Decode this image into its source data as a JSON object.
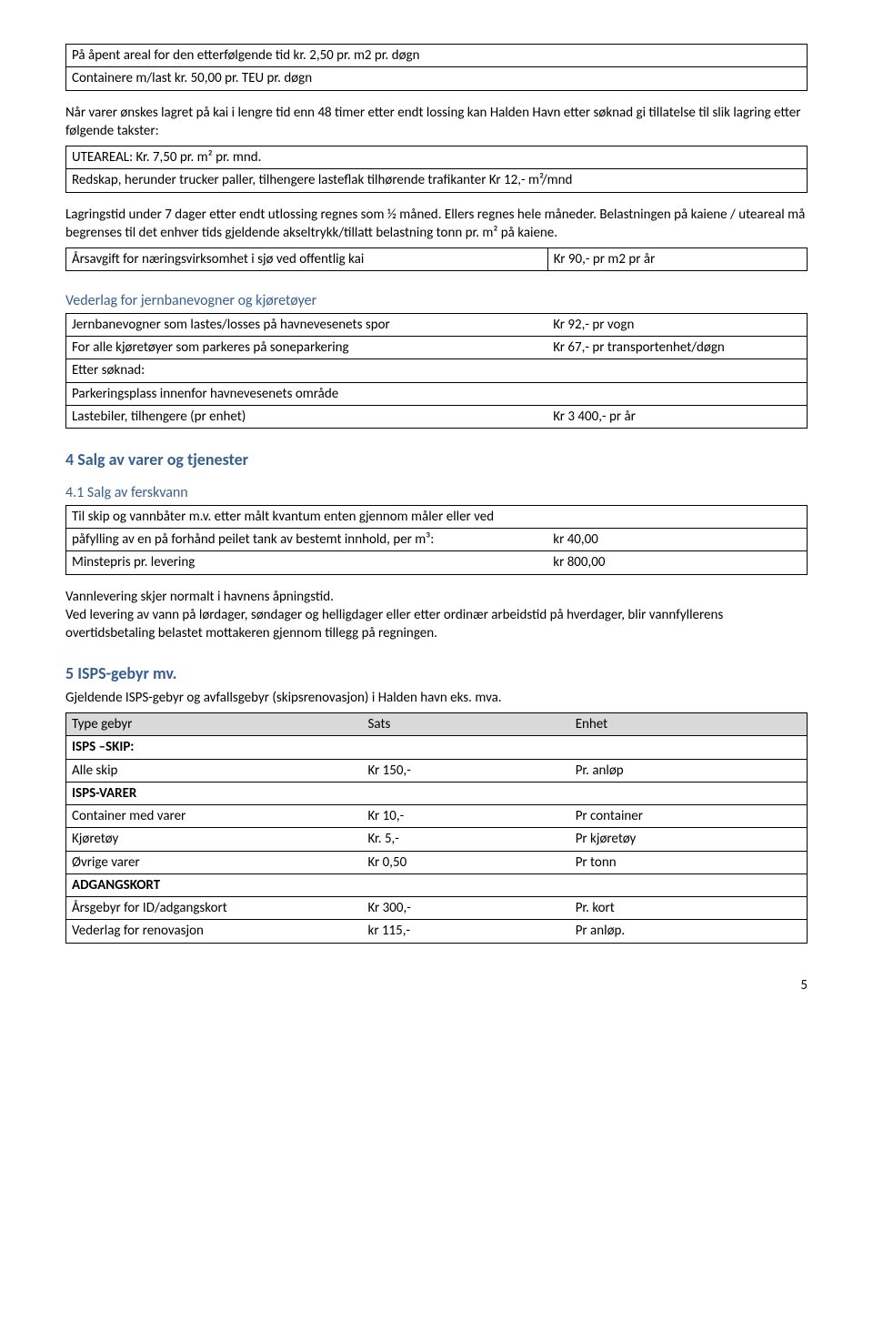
{
  "table1": {
    "r1": "På åpent areal for den etterfølgende tid kr. 2,50 pr. m2 pr. døgn",
    "r2": "Containere m/last kr. 50,00 pr. TEU pr. døgn"
  },
  "para1": "Når varer ønskes lagret på kai i lengre tid enn 48 timer etter endt lossing kan Halden Havn etter søknad gi tillatelse til slik lagring etter følgende takster:",
  "table2": {
    "r1": "UTEAREAL: Kr. 7,50 pr. m² pr. mnd.",
    "r2": "Redskap, herunder trucker paller, tilhengere lasteflak tilhørende trafikanter Kr 12,- m²/mnd"
  },
  "para2": "Lagringstid under 7 dager etter endt utlossing regnes som ½ måned. Ellers regnes hele måneder. Belastningen på kaiene / uteareal må begrenses til det enhver tids gjeldende akseltrykk/tillatt belastning tonn pr. m² på kaiene.",
  "table3": {
    "c1": "Årsavgift for næringsvirksomhet i sjø ved offentlig kai",
    "c2": "Kr 90,- pr m2  pr år"
  },
  "vederlag": {
    "heading": "Vederlag for jernbanevogner og kjøretøyer",
    "rows": [
      [
        "Jernbanevogner som lastes/losses på havnevesenets spor",
        "Kr 92,- pr vogn"
      ],
      [
        "For alle kjøretøyer som parkeres på soneparkering",
        "Kr 67,- pr transportenhet/døgn"
      ],
      [
        "Etter søknad:",
        ""
      ],
      [
        "Parkeringsplass innenfor havnevesenets område",
        ""
      ],
      [
        "Lastebiler, tilhengere (pr enhet)",
        "Kr 3 400,- pr år"
      ]
    ]
  },
  "section4": {
    "title": "4 Salg av varer og tjenester",
    "sub1": "4.1 Salg av ferskvann",
    "rows": [
      [
        "Til skip og vannbåter m.v. etter målt kvantum enten gjennom måler eller ved",
        ""
      ],
      [
        "påfylling av en på forhånd peilet tank av bestemt innhold, per m³:",
        "kr   40,00"
      ],
      [
        "Minstepris pr. levering",
        "kr 800,00"
      ]
    ],
    "p1": "Vannlevering skjer normalt i havnens åpningstid.",
    "p2": "Ved levering av vann på lørdager, søndager og helligdager eller etter ordinær arbeidstid på hverdager, blir vannfyllerens overtidsbetaling belastet mottakeren gjennom tillegg på regningen."
  },
  "section5": {
    "title": "5 ISPS-gebyr mv.",
    "intro": "Gjeldende ISPS-gebyr og avfallsgebyr (skipsrenovasjon) i Halden havn eks. mva.",
    "header": [
      "Type gebyr",
      "Sats",
      "Enhet"
    ],
    "rows": [
      [
        "ISPS –SKIP:",
        "",
        ""
      ],
      [
        "Alle skip",
        "Kr 150,-",
        "Pr. anløp"
      ],
      [
        "ISPS-VARER",
        "",
        ""
      ],
      [
        "Container med varer",
        "Kr 10,-",
        "Pr container"
      ],
      [
        "Kjøretøy",
        "Kr. 5,-",
        "Pr kjøretøy"
      ],
      [
        "Øvrige varer",
        "Kr 0,50",
        "Pr tonn"
      ],
      [
        "ADGANGSKORT",
        "",
        ""
      ],
      [
        "Årsgebyr for ID/adgangskort",
        "Kr 300,-",
        "Pr. kort"
      ],
      [
        "Vederlag for renovasjon",
        "kr 115,-",
        "Pr anløp."
      ]
    ],
    "bold_idx": [
      0,
      2,
      6
    ]
  },
  "pagenum": "5",
  "colwidths": {
    "two_col": [
      "65%",
      "35%"
    ],
    "three_col": [
      "40%",
      "28%",
      "32%"
    ]
  }
}
